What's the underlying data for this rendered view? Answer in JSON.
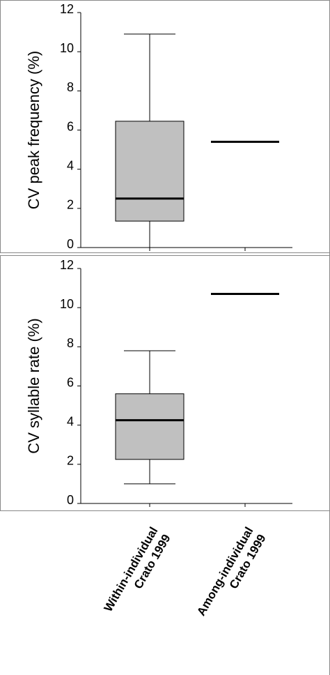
{
  "chart_data": [
    {
      "type": "box",
      "ylabel": "CV peak frequency (%)",
      "ylim": [
        0,
        12
      ],
      "yticks": [
        0,
        2,
        4,
        6,
        8,
        10,
        12
      ],
      "color": "#c0c0c0",
      "boxes": [
        {
          "whislo": 0,
          "q1": 1.35,
          "med": 2.5,
          "q3": 6.45,
          "whishi": 10.9
        },
        {
          "med": 5.4
        }
      ]
    },
    {
      "type": "box",
      "ylabel": "CV syllable rate (%)",
      "ylim": [
        0,
        12
      ],
      "yticks": [
        0,
        2,
        4,
        6,
        8,
        10,
        12
      ],
      "color": "#c0c0c0",
      "categories": [
        [
          "Within-individual",
          "Crato 1999"
        ],
        [
          "Among-individual",
          "Crato 1999"
        ]
      ],
      "boxes": [
        {
          "whislo": 1.0,
          "q1": 2.25,
          "med": 4.25,
          "q3": 5.6,
          "whishi": 7.8
        },
        {
          "med": 10.7
        }
      ]
    }
  ]
}
